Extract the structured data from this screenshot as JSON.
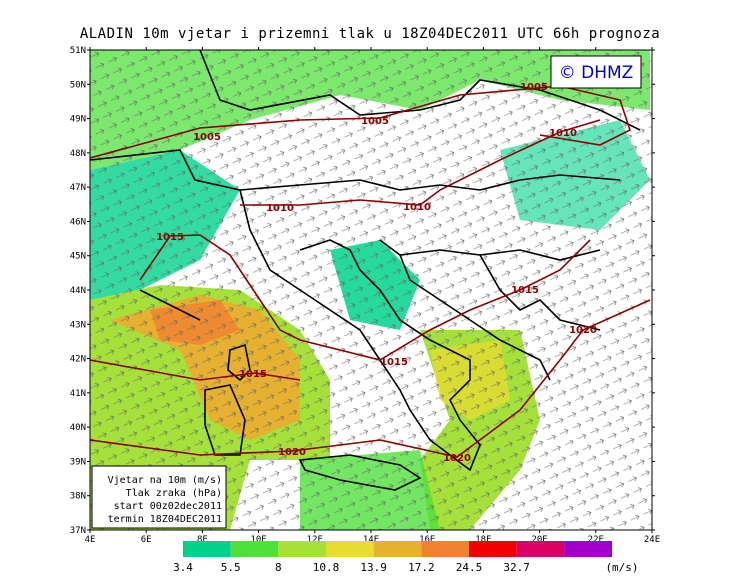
{
  "title": "ALADIN 10m vjetar i prizemni tlak u 18Z04DEC2011 UTC 66h prognoza",
  "logo": "© DHMZ",
  "lat_labels": [
    "51N",
    "50N",
    "49N",
    "48N",
    "47N",
    "46N",
    "45N",
    "44N",
    "43N",
    "42N",
    "41N",
    "40N",
    "39N",
    "38N",
    "37N"
  ],
  "lon_labels": [
    "4E",
    "6E",
    "8E",
    "10E",
    "12E",
    "14E",
    "16E",
    "18E",
    "20E",
    "22E",
    "24E"
  ],
  "isobar_labels": [
    1005,
    1005,
    1005,
    1010,
    1010,
    1010,
    1015,
    1015,
    1015,
    1015,
    1020,
    1020,
    1020
  ],
  "info_box": [
    "Vjetar na 10m (m/s)",
    "Tlak zraka (hPa)",
    "start 00z02dec2011",
    "termin 18Z04DEC2011"
  ],
  "colorbar": {
    "thresholds": [
      3.4,
      5.5,
      8,
      10.8,
      13.9,
      17.2,
      24.5,
      32.7
    ],
    "colors": [
      "#00d28c",
      "#50e03c",
      "#a6e03a",
      "#e6dc32",
      "#e6b030",
      "#f08232",
      "#f00000",
      "#dc0064",
      "#a000c8"
    ],
    "unit": "(m/s)"
  }
}
